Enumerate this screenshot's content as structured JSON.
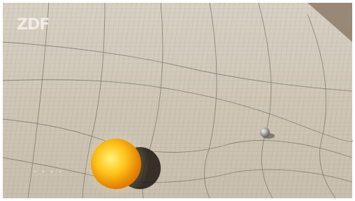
{
  "logo": "ZDF"
}
